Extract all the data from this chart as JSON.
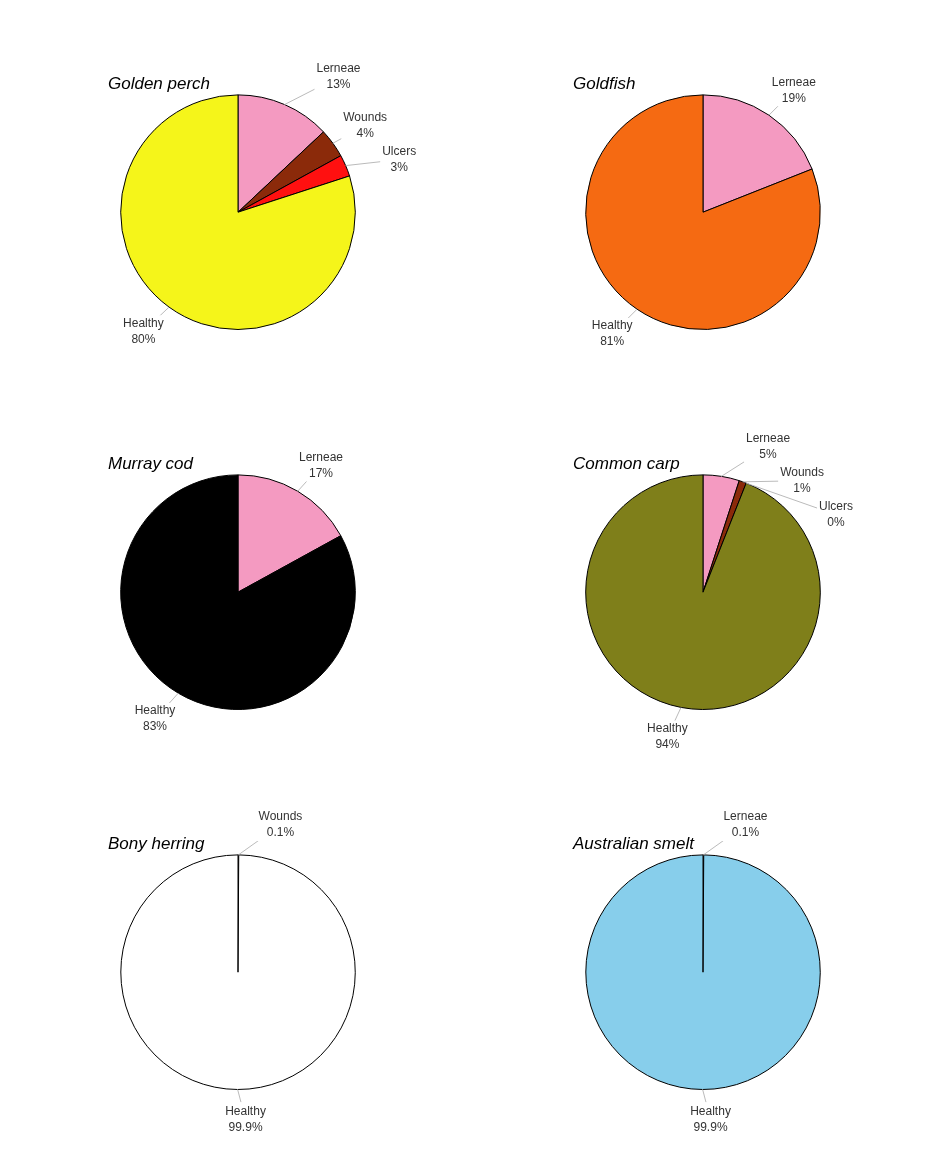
{
  "chart_data": [
    {
      "type": "pie",
      "title": "Golden perch",
      "categories": [
        "Lerneae",
        "Wounds",
        "Ulcers",
        "Healthy"
      ],
      "values": [
        13,
        4,
        3,
        80
      ],
      "colors": [
        "#f49ac1",
        "#8b2a0a",
        "#ff1010",
        "#f5f51a"
      ],
      "value_labels": [
        "13%",
        "4%",
        "3%",
        "80%"
      ]
    },
    {
      "type": "pie",
      "title": "Goldfish",
      "categories": [
        "Lerneae",
        "Healthy"
      ],
      "values": [
        19,
        81
      ],
      "colors": [
        "#f49ac1",
        "#f56a12"
      ],
      "value_labels": [
        "19%",
        "81%"
      ]
    },
    {
      "type": "pie",
      "title": "Murray cod",
      "categories": [
        "Lerneae",
        "Healthy"
      ],
      "values": [
        17,
        83
      ],
      "colors": [
        "#f49ac1",
        "#000000"
      ],
      "value_labels": [
        "17%",
        "83%"
      ]
    },
    {
      "type": "pie",
      "title": "Common carp",
      "categories": [
        "Lerneae",
        "Wounds",
        "Ulcers",
        "Healthy"
      ],
      "values": [
        5,
        1,
        0,
        94
      ],
      "colors": [
        "#f49ac1",
        "#8b2a0a",
        "#ff1010",
        "#7f7f1a"
      ],
      "value_labels": [
        "5%",
        "1%",
        "0%",
        "94%"
      ]
    },
    {
      "type": "pie",
      "title": "Bony herring",
      "categories": [
        "Wounds",
        "Healthy"
      ],
      "values": [
        0.1,
        99.9
      ],
      "colors": [
        "#8b2a0a",
        "#ffffff"
      ],
      "value_labels": [
        "0.1%",
        "99.9%"
      ]
    },
    {
      "type": "pie",
      "title": "Australian smelt",
      "categories": [
        "Lerneae",
        "Healthy"
      ],
      "values": [
        0.1,
        99.9
      ],
      "colors": [
        "#f49ac1",
        "#87ceeb"
      ],
      "value_labels": [
        "0.1%",
        "99.9%"
      ]
    }
  ]
}
